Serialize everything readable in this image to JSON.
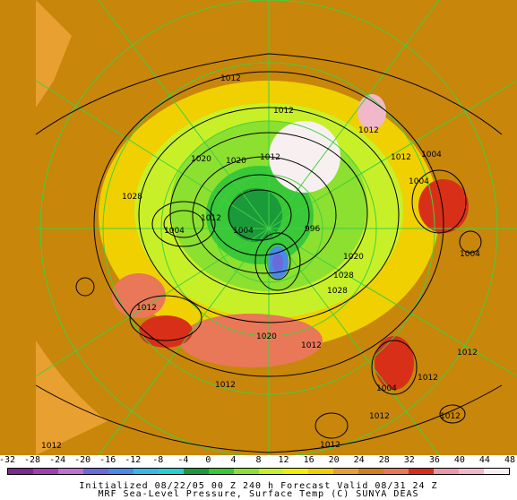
{
  "scale": {
    "ticks": [
      "-32",
      "-28",
      "-24",
      "-20",
      "-16",
      "-12",
      "-8",
      "-4",
      "0",
      "4",
      "8",
      "12",
      "16",
      "20",
      "24",
      "28",
      "32",
      "36",
      "40",
      "44",
      "48"
    ],
    "colors": [
      "#7a2a8c",
      "#a040b0",
      "#c070d0",
      "#6a6ad8",
      "#4a8ae8",
      "#38b8e8",
      "#28d0d0",
      "#1a9a3a",
      "#38c838",
      "#8ce030",
      "#c8f028",
      "#f0f000",
      "#f0d000",
      "#e8a030",
      "#d08018",
      "#e87858",
      "#d83018",
      "#e898a8",
      "#f0b8c8",
      "#f8f0f0"
    ]
  },
  "caption": {
    "line1": "Initialized 08/22/05 00 Z  240 h Forecast Valid 08/31 24 Z",
    "line2": "MRF Sea-Level Pressure, Surface Temp (C)    SUNYA DEAS"
  },
  "pressure_labels": [
    {
      "text": "1012"
    },
    {
      "text": "1012"
    },
    {
      "text": "1012"
    },
    {
      "text": "1020"
    },
    {
      "text": "1020"
    },
    {
      "text": "1012"
    },
    {
      "text": "1028"
    },
    {
      "text": "1012"
    },
    {
      "text": "1004"
    },
    {
      "text": "1004"
    },
    {
      "text": "1004"
    },
    {
      "text": "1012"
    },
    {
      "text": "1004"
    },
    {
      "text": "1028"
    },
    {
      "text": "1020"
    },
    {
      "text": "1028"
    },
    {
      "text": "1020"
    },
    {
      "text": "1012"
    },
    {
      "text": "1012"
    },
    {
      "text": "1012"
    },
    {
      "text": "1004"
    },
    {
      "text": "1012"
    },
    {
      "text": "1012"
    },
    {
      "text": "1012"
    },
    {
      "text": "1012"
    },
    {
      "text": "1012"
    },
    {
      "text": "1004"
    },
    {
      "text": "996"
    },
    {
      "text": "1012"
    }
  ]
}
